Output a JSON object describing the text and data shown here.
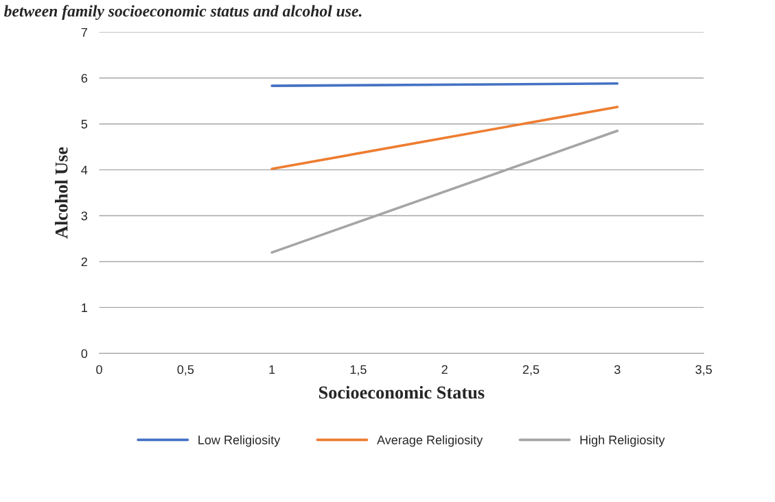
{
  "chart_data": {
    "type": "line",
    "title": "between family socioeconomic status and alcohol use.",
    "xlabel": "Socioeconomic Status",
    "ylabel": "Alcohol Use",
    "x": [
      1,
      3
    ],
    "series": [
      {
        "name": "Low Religiosity",
        "color": "#4472c4",
        "values": [
          5.83,
          5.88
        ]
      },
      {
        "name": "Average Religiosity",
        "color": "#ed7d31",
        "values": [
          4.02,
          5.37
        ]
      },
      {
        "name": "High Religiosity",
        "color": "#a5a5a5",
        "values": [
          2.2,
          4.85
        ]
      }
    ],
    "xlim": [
      0,
      3.5
    ],
    "xticks": [
      0,
      {
        "value": 0.5,
        "label": "0,5"
      },
      1,
      {
        "value": 1.5,
        "label": "1,5"
      },
      2,
      {
        "value": 2.5,
        "label": "2,5"
      },
      3,
      {
        "value": 3.5,
        "label": "3,5"
      }
    ],
    "ylim": [
      0,
      7
    ],
    "yticks": [
      0,
      1,
      2,
      3,
      4,
      5,
      6,
      7
    ],
    "grid": "y",
    "legend": "bottom",
    "marker": "none",
    "line_style": "solid"
  }
}
